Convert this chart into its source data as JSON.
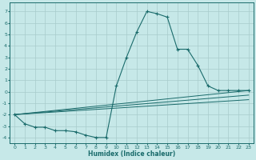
{
  "xlabel": "Humidex (Indice chaleur)",
  "background_color": "#c6e8e8",
  "grid_color": "#a8cccc",
  "line_color": "#1a6b6b",
  "xlim": [
    -0.5,
    23.5
  ],
  "ylim": [
    -4.5,
    7.8
  ],
  "yticks": [
    -4,
    -3,
    -2,
    -1,
    0,
    1,
    2,
    3,
    4,
    5,
    6,
    7
  ],
  "xticks": [
    0,
    1,
    2,
    3,
    4,
    5,
    6,
    7,
    8,
    9,
    10,
    11,
    12,
    13,
    14,
    15,
    16,
    17,
    18,
    19,
    20,
    21,
    22,
    23
  ],
  "line1_x": [
    0,
    1,
    2,
    3,
    4,
    5,
    6,
    7,
    8,
    9,
    10,
    11,
    12,
    13,
    14,
    15,
    16,
    17,
    18,
    19,
    20,
    21,
    22,
    23
  ],
  "line1_y": [
    -2.0,
    -2.8,
    -3.1,
    -3.1,
    -3.4,
    -3.4,
    -3.5,
    -3.8,
    -4.0,
    -4.0,
    0.5,
    3.0,
    5.2,
    7.0,
    6.8,
    6.5,
    3.7,
    3.7,
    2.3,
    0.5,
    0.1,
    0.1,
    0.1,
    0.1
  ],
  "line2_x": [
    0,
    23
  ],
  "line2_y": [
    -2.0,
    0.1
  ],
  "line3_x": [
    0,
    23
  ],
  "line3_y": [
    -2.0,
    -0.3
  ],
  "line4_x": [
    0,
    23
  ],
  "line4_y": [
    -2.0,
    -0.7
  ]
}
